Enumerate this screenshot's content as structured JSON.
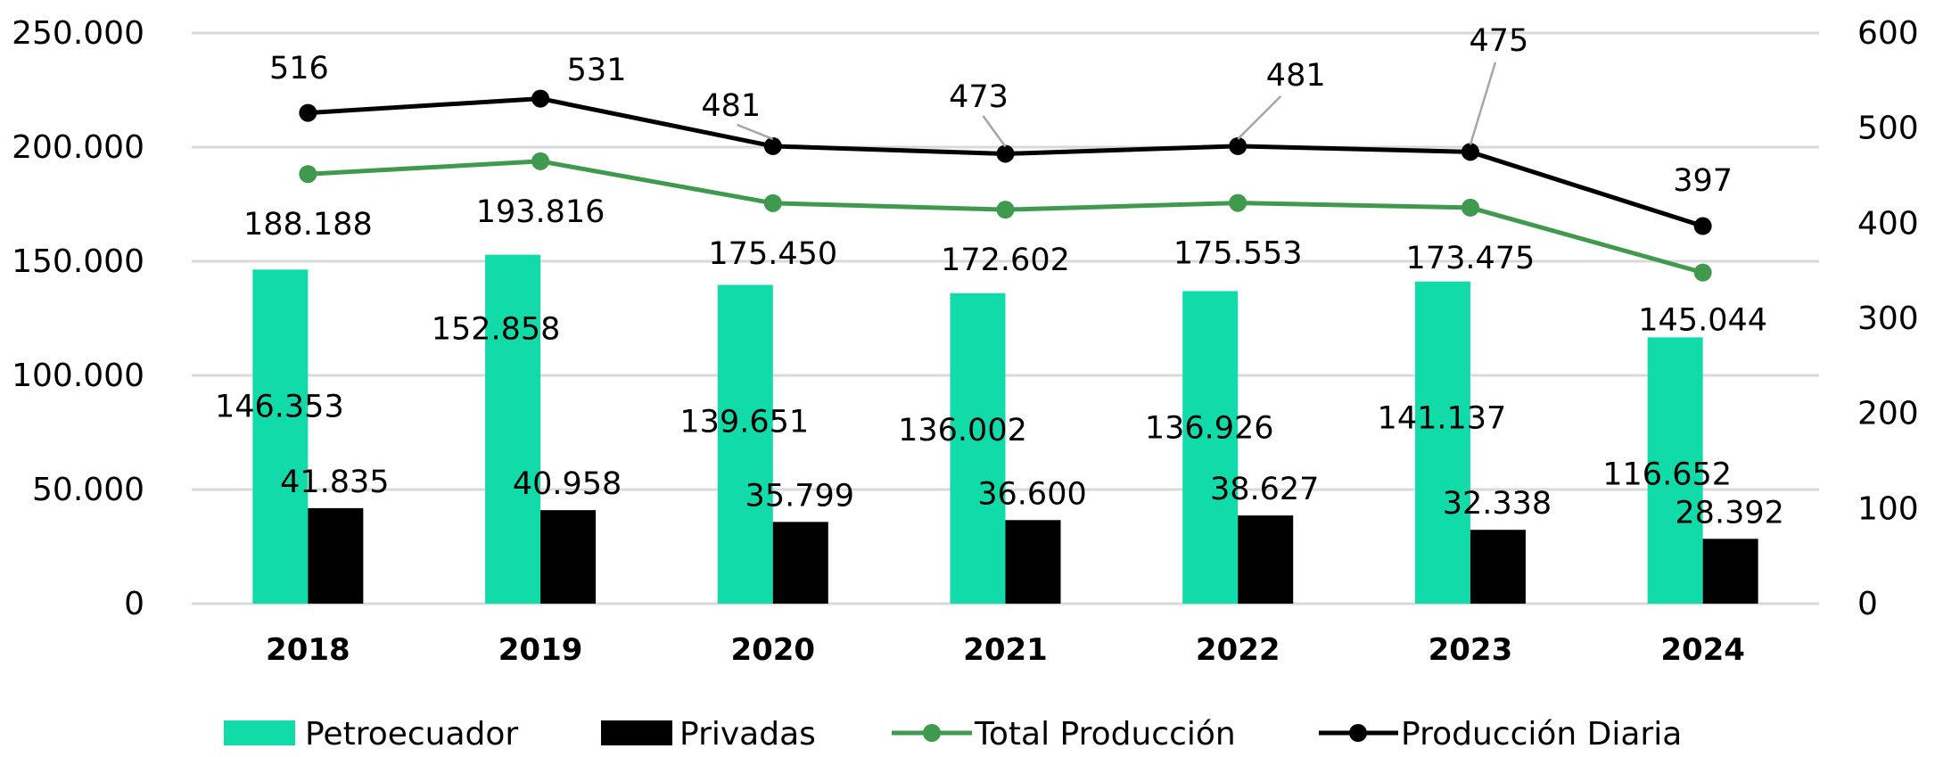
{
  "chart_data": {
    "type": "bar",
    "categories": [
      "2018",
      "2019",
      "2020",
      "2021",
      "2022",
      "2023",
      "2024"
    ],
    "series": [
      {
        "name": "Petroecuador",
        "type": "bar",
        "axis": "left",
        "color": "#12DBAA",
        "values": [
          146353,
          152858,
          139651,
          136002,
          136926,
          141137,
          116652
        ],
        "labels": [
          "146.353",
          "152.858",
          "139.651",
          "136.002",
          "136.926",
          "141.137",
          "116.652"
        ]
      },
      {
        "name": "Privadas",
        "type": "bar",
        "axis": "left",
        "color": "#000000",
        "values": [
          41835,
          40958,
          35799,
          36600,
          38627,
          32338,
          28392
        ],
        "labels": [
          "41.835",
          "40.958",
          "35.799",
          "36.600",
          "38.627",
          "32.338",
          "28.392"
        ]
      },
      {
        "name": "Total Producción",
        "type": "line",
        "axis": "left",
        "color": "#3F9A4E",
        "values": [
          188188,
          193816,
          175450,
          172602,
          175553,
          173475,
          145044
        ],
        "labels": [
          "188.188",
          "193.816",
          "175.450",
          "172.602",
          "175.553",
          "173.475",
          "145.044"
        ]
      },
      {
        "name": "Producción Diaria",
        "type": "line",
        "axis": "right",
        "color": "#000000",
        "values": [
          516,
          531,
          481,
          473,
          481,
          475,
          397
        ],
        "labels": [
          "516",
          "531",
          "481",
          "473",
          "481",
          "475",
          "397"
        ]
      }
    ],
    "y_left": {
      "min": 0,
      "max": 250000,
      "ticks": [
        "0",
        "50.000",
        "100.000",
        "150.000",
        "200.000",
        "250.000"
      ]
    },
    "y_right": {
      "min": 0,
      "max": 600,
      "ticks": [
        "0",
        "100",
        "200",
        "300",
        "400",
        "500",
        "600"
      ]
    },
    "grid": true,
    "legend_position": "bottom"
  }
}
